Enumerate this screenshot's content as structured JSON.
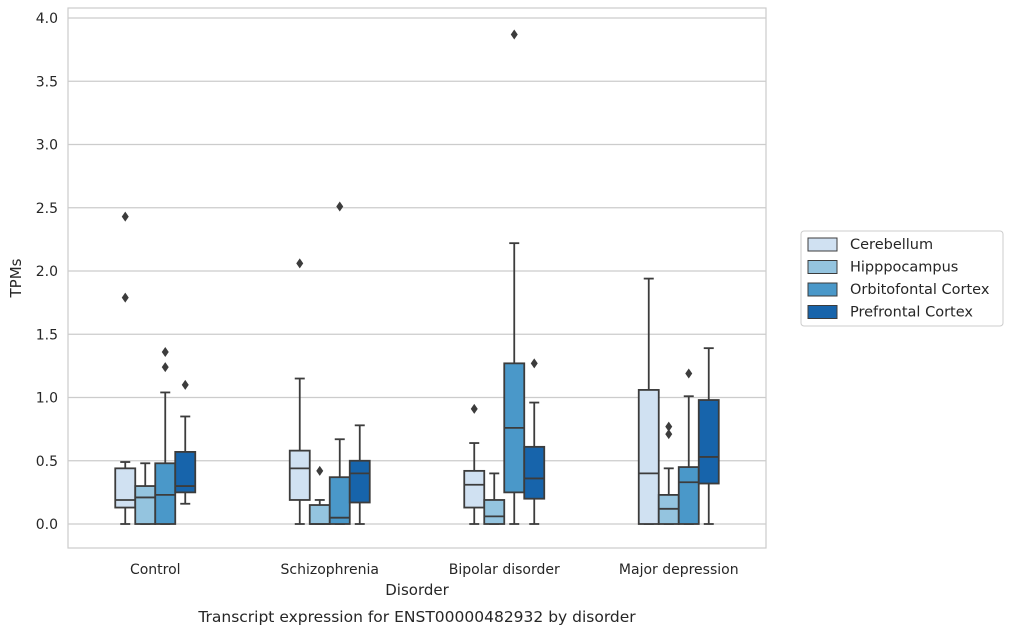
{
  "chart_data": {
    "type": "box",
    "xlabel": "Disorder",
    "ylabel": "TPMs",
    "caption": "Transcript expression for ENST00000482932 by disorder",
    "ylim": [
      -0.18,
      4.07
    ],
    "yticks": [
      0.0,
      0.5,
      1.0,
      1.5,
      2.0,
      2.5,
      3.0,
      3.5,
      4.0
    ],
    "ytick_labels": [
      "0.0",
      "0.5",
      "1.0",
      "1.5",
      "2.0",
      "2.5",
      "3.0",
      "3.5",
      "4.0"
    ],
    "grid": true,
    "legend_position": "right",
    "categories": [
      "Control",
      "Schizophrenia",
      "Bipolar disorder",
      "Major depression"
    ],
    "series": [
      {
        "name": "Cerebellum",
        "color": "#d0e1f2",
        "boxes": [
          {
            "whislo": 0.0,
            "q1": 0.13,
            "med": 0.19,
            "q3": 0.44,
            "whishi": 0.49,
            "fliers": [
              1.79,
              2.43
            ]
          },
          {
            "whislo": 0.0,
            "q1": 0.19,
            "med": 0.44,
            "q3": 0.58,
            "whishi": 1.15,
            "fliers": [
              2.06
            ]
          },
          {
            "whislo": 0.0,
            "q1": 0.13,
            "med": 0.31,
            "q3": 0.42,
            "whishi": 0.64,
            "fliers": [
              0.91
            ]
          },
          {
            "whislo": 0.0,
            "q1": 0.0,
            "med": 0.4,
            "q3": 1.06,
            "whishi": 1.94,
            "fliers": []
          }
        ]
      },
      {
        "name": "Hipppocampus",
        "color": "#94c4df",
        "boxes": [
          {
            "whislo": 0.0,
            "q1": 0.0,
            "med": 0.21,
            "q3": 0.3,
            "whishi": 0.48,
            "fliers": []
          },
          {
            "whislo": 0.0,
            "q1": 0.0,
            "med": 0.0,
            "q3": 0.15,
            "whishi": 0.19,
            "fliers": [
              0.42
            ]
          },
          {
            "whislo": 0.0,
            "q1": 0.0,
            "med": 0.06,
            "q3": 0.19,
            "whishi": 0.4,
            "fliers": []
          },
          {
            "whislo": 0.0,
            "q1": 0.0,
            "med": 0.12,
            "q3": 0.23,
            "whishi": 0.44,
            "fliers": [
              0.71,
              0.77
            ]
          }
        ]
      },
      {
        "name": "Orbitofontal Cortex",
        "color": "#4a98c9",
        "boxes": [
          {
            "whislo": 0.0,
            "q1": 0.0,
            "med": 0.23,
            "q3": 0.48,
            "whishi": 1.04,
            "fliers": [
              1.24,
              1.36
            ]
          },
          {
            "whislo": 0.0,
            "q1": 0.0,
            "med": 0.05,
            "q3": 0.37,
            "whishi": 0.67,
            "fliers": [
              2.51
            ]
          },
          {
            "whislo": 0.0,
            "q1": 0.25,
            "med": 0.76,
            "q3": 1.27,
            "whishi": 2.22,
            "fliers": [
              3.87
            ]
          },
          {
            "whislo": 0.0,
            "q1": 0.0,
            "med": 0.33,
            "q3": 0.45,
            "whishi": 1.01,
            "fliers": [
              1.19
            ]
          }
        ]
      },
      {
        "name": "Prefrontal Cortex",
        "color": "#1764ab",
        "boxes": [
          {
            "whislo": 0.16,
            "q1": 0.25,
            "med": 0.3,
            "q3": 0.57,
            "whishi": 0.85,
            "fliers": [
              1.1
            ]
          },
          {
            "whislo": 0.0,
            "q1": 0.17,
            "med": 0.4,
            "q3": 0.5,
            "whishi": 0.78,
            "fliers": []
          },
          {
            "whislo": 0.0,
            "q1": 0.2,
            "med": 0.36,
            "q3": 0.61,
            "whishi": 0.96,
            "fliers": [
              1.27
            ]
          },
          {
            "whislo": 0.0,
            "q1": 0.32,
            "med": 0.53,
            "q3": 0.98,
            "whishi": 1.39,
            "fliers": []
          }
        ]
      }
    ]
  }
}
